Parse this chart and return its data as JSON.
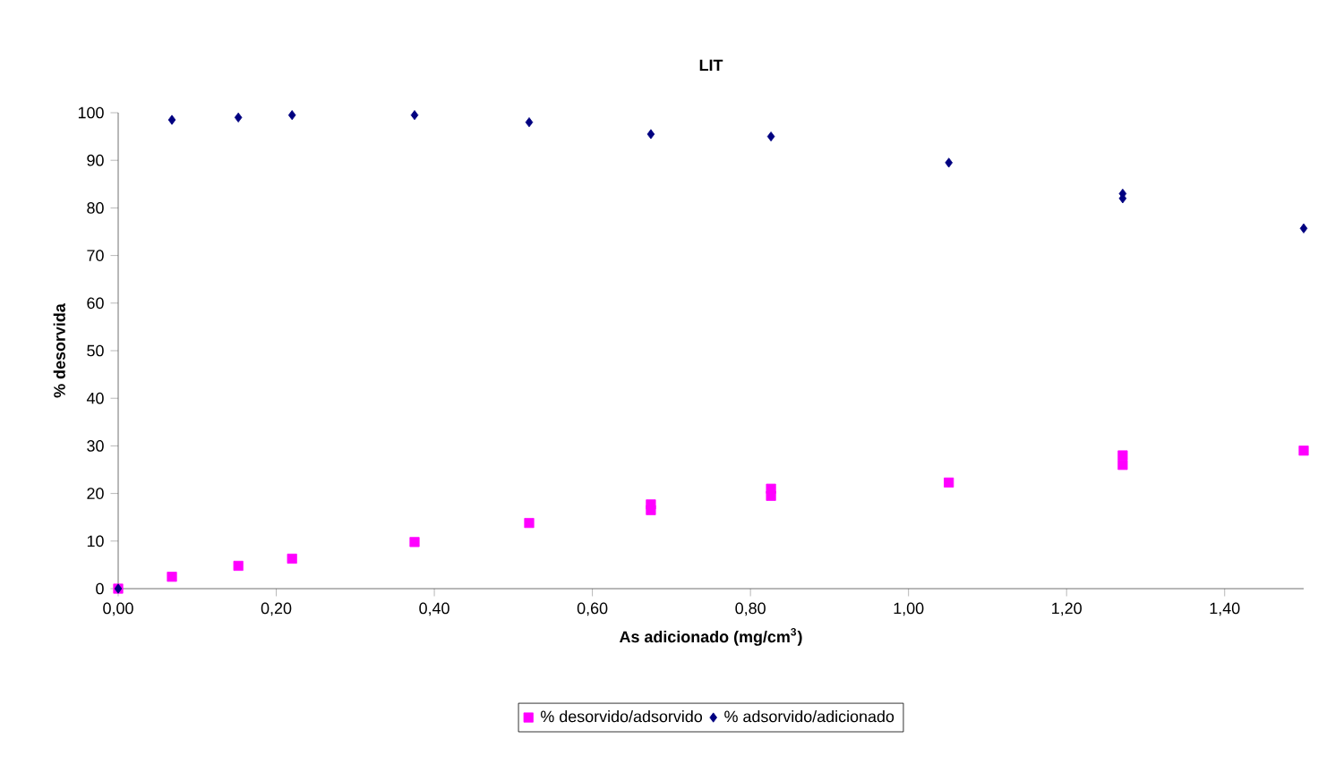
{
  "chart_data": {
    "type": "scatter",
    "title": "LIT",
    "xlabel": "As adicionado (mg/cm$^{3}$)",
    "ylabel": "% desorvida",
    "xlim": [
      0,
      1.5
    ],
    "ylim": [
      0,
      100
    ],
    "xticks": [
      {
        "value": 0,
        "label": "0,00"
      },
      {
        "value": 0.2,
        "label": "0,20"
      },
      {
        "value": 0.4,
        "label": "0,40"
      },
      {
        "value": 0.6,
        "label": "0,60"
      },
      {
        "value": 0.8,
        "label": "0,80"
      },
      {
        "value": 1.0,
        "label": "1,00"
      },
      {
        "value": 1.2,
        "label": "1,20"
      },
      {
        "value": 1.4,
        "label": "1,40"
      }
    ],
    "yticks": [
      0,
      10,
      20,
      30,
      40,
      50,
      60,
      70,
      80,
      90,
      100
    ],
    "grid": false,
    "legend": "bottom",
    "series": [
      {
        "name": "% desorvido/adsorvido",
        "color": "#ff00ff",
        "marker": "square",
        "x": [
          0,
          0.068,
          0.152,
          0.22,
          0.375,
          0.52,
          0.674,
          0.674,
          0.826,
          0.826,
          1.051,
          1.271,
          1.271,
          1.5
        ],
        "values": [
          0,
          2.5,
          4.8,
          6.3,
          9.8,
          13.8,
          16.5,
          17.7,
          19.5,
          21,
          22.3,
          26,
          28,
          29
        ]
      },
      {
        "name": "% adsorvido/adicionado",
        "color": "#000080",
        "marker": "diamond",
        "x": [
          0,
          0.068,
          0.152,
          0.22,
          0.375,
          0.52,
          0.674,
          0.826,
          1.051,
          1.271,
          1.271,
          1.5
        ],
        "values": [
          0,
          98.5,
          99,
          99.5,
          99.5,
          98,
          95.5,
          95,
          89.5,
          82,
          83,
          75.7
        ]
      }
    ]
  }
}
